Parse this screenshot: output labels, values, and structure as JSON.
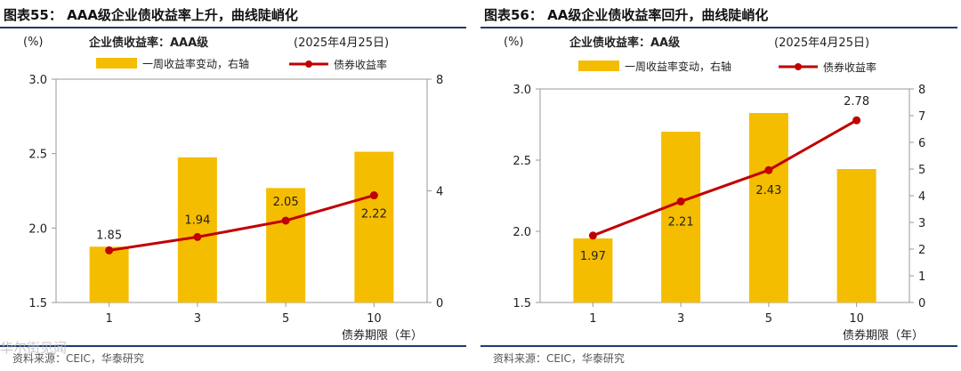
{
  "colors": {
    "bar": "#F5BD00",
    "line": "#C00000",
    "rule": "#1F3A6E",
    "axis": "#999999"
  },
  "watermark": "华尔街见闻",
  "chart_data": [
    {
      "type": "bar+line",
      "title": "图表55：  AAA级企业债收益率上升，曲线陡峭化",
      "subtitle": "企业债收益率：AAA级",
      "date": "(2025年4月25日)",
      "left_unit": "(%)",
      "xlabel": "债券期限（年）",
      "categories": [
        "1",
        "3",
        "5",
        "10"
      ],
      "bar_series": {
        "name": "一周收益率变动，右轴",
        "values": [
          2.0,
          5.2,
          4.1,
          5.4
        ]
      },
      "line_series": {
        "name": "债券收益率",
        "values": [
          1.85,
          1.94,
          2.05,
          2.22
        ]
      },
      "data_labels": [
        "1.85",
        "1.94",
        "2.05",
        "2.22"
      ],
      "left_axis": {
        "min": 1.5,
        "max": 3.0,
        "ticks": [
          "1.5",
          "2.0",
          "2.5",
          "3.0"
        ]
      },
      "right_axis": {
        "min": 0,
        "max": 8,
        "ticks": [
          "0",
          "4",
          "8"
        ]
      },
      "source": "资料来源：CEIC，华泰研究"
    },
    {
      "type": "bar+line",
      "title": "图表56：  AA级企业债收益率回升，曲线陡峭化",
      "subtitle": "企业债收益率：AA级",
      "date": "(2025年4月25日)",
      "left_unit": "(%)",
      "xlabel": "债券期限（年）",
      "categories": [
        "1",
        "3",
        "5",
        "10"
      ],
      "bar_series": {
        "name": "一周收益率变动，右轴",
        "values": [
          2.4,
          6.4,
          7.1,
          5.0
        ]
      },
      "line_series": {
        "name": "债券收益率",
        "values": [
          1.97,
          2.21,
          2.43,
          2.78
        ]
      },
      "data_labels": [
        "1.97",
        "2.21",
        "2.43",
        "2.78"
      ],
      "left_axis": {
        "min": 1.5,
        "max": 3.0,
        "ticks": [
          "1.5",
          "2.0",
          "2.5",
          "3.0"
        ]
      },
      "right_axis": {
        "min": 0,
        "max": 8,
        "ticks": [
          "0",
          "1",
          "2",
          "3",
          "4",
          "5",
          "6",
          "7",
          "8"
        ]
      },
      "source": "资料来源：CEIC，华泰研究"
    }
  ]
}
